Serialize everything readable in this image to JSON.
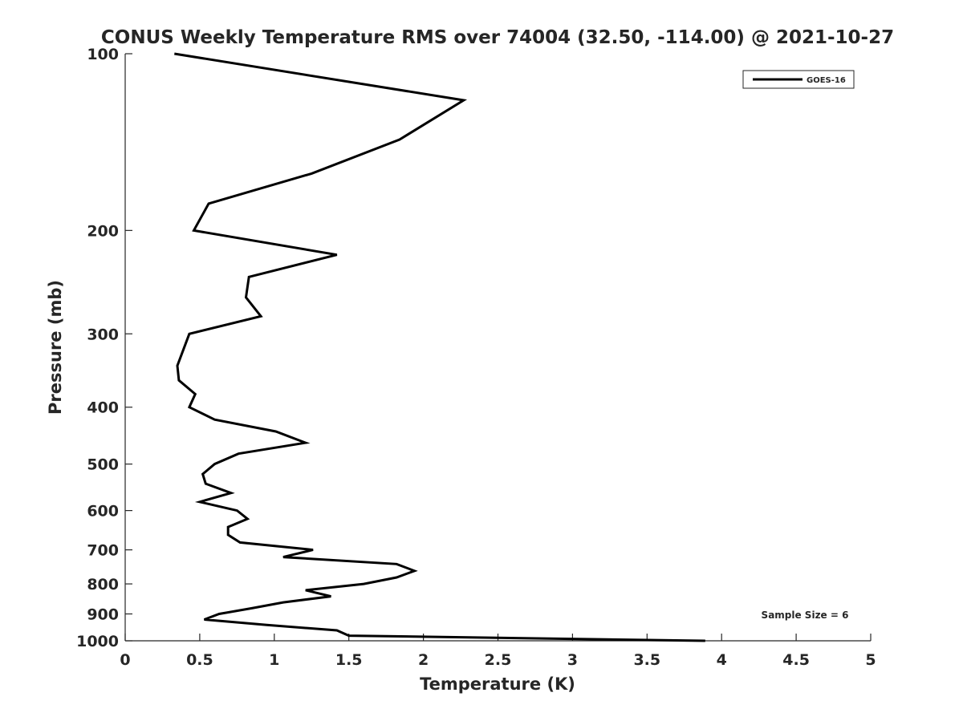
{
  "chart_data": {
    "type": "line",
    "title": "CONUS Weekly Temperature RMS over 74004 (32.50, -114.00) @ 2021-10-27",
    "xlabel": "Temperature (K)",
    "ylabel": "Pressure (mb)",
    "xlim": [
      0,
      5
    ],
    "ylim": [
      100,
      1000
    ],
    "yscale": "log",
    "yreversed": true,
    "grid": false,
    "xticks": [
      "0",
      "0.5",
      "1",
      "1.5",
      "2",
      "2.5",
      "3",
      "3.5",
      "4",
      "4.5",
      "5"
    ],
    "yticks": [
      "100",
      "200",
      "300",
      "400",
      "500",
      "600",
      "700",
      "800",
      "900",
      "1000"
    ],
    "legend": {
      "placement": "top-right",
      "entries": [
        "GOES-16"
      ]
    },
    "annotation": "Sample Size = 6",
    "series": [
      {
        "name": "GOES-16",
        "color": "#000000",
        "points": [
          [
            0.33,
            100
          ],
          [
            2.27,
            120
          ],
          [
            1.84,
            140
          ],
          [
            1.25,
            160
          ],
          [
            0.56,
            180
          ],
          [
            0.46,
            200
          ],
          [
            1.42,
            220
          ],
          [
            0.83,
            240
          ],
          [
            0.81,
            260
          ],
          [
            0.91,
            280
          ],
          [
            0.43,
            300
          ],
          [
            0.35,
            340
          ],
          [
            0.36,
            360
          ],
          [
            0.47,
            380
          ],
          [
            0.43,
            400
          ],
          [
            0.6,
            420
          ],
          [
            1.01,
            440
          ],
          [
            1.21,
            460
          ],
          [
            0.76,
            480
          ],
          [
            0.6,
            500
          ],
          [
            0.52,
            520
          ],
          [
            0.54,
            540
          ],
          [
            0.71,
            560
          ],
          [
            0.5,
            580
          ],
          [
            0.75,
            600
          ],
          [
            0.82,
            620
          ],
          [
            0.69,
            640
          ],
          [
            0.69,
            660
          ],
          [
            0.77,
            680
          ],
          [
            1.26,
            700
          ],
          [
            1.06,
            720
          ],
          [
            1.82,
            740
          ],
          [
            1.94,
            760
          ],
          [
            1.82,
            780
          ],
          [
            1.6,
            800
          ],
          [
            1.21,
            820
          ],
          [
            1.38,
            840
          ],
          [
            1.06,
            860
          ],
          [
            0.85,
            880
          ],
          [
            0.63,
            900
          ],
          [
            0.53,
            920
          ],
          [
            0.95,
            940
          ],
          [
            1.42,
            960
          ],
          [
            1.5,
            980
          ],
          [
            3.89,
            1000
          ]
        ]
      }
    ]
  }
}
